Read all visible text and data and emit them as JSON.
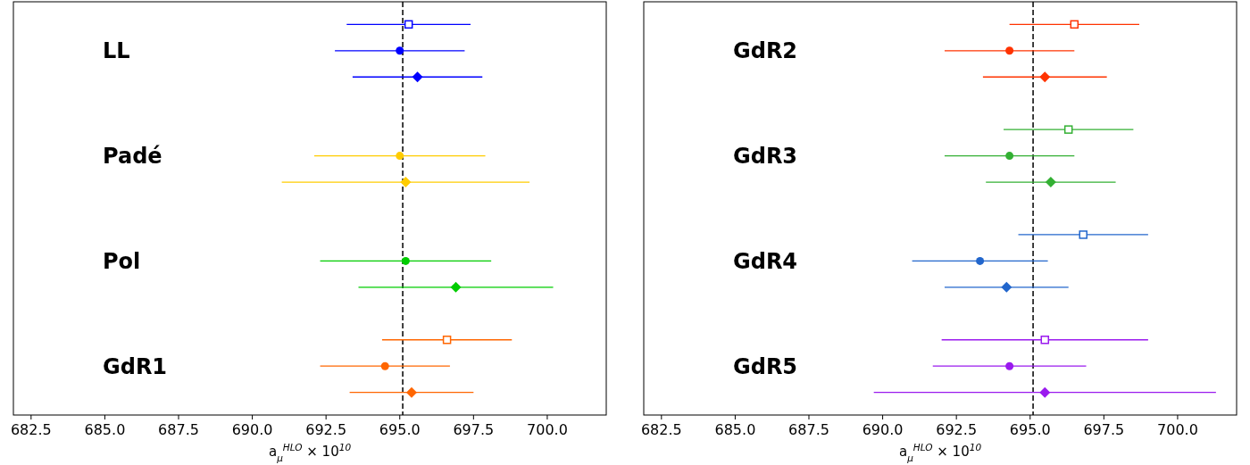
{
  "chart_data": [
    {
      "type": "scatter",
      "orientation": "horizontal",
      "xlabel": "a$_{μ}$$^{HLO}$ × 10$^{10}$",
      "categories": [
        null,
        "LL",
        null,
        null,
        null,
        "Padé",
        null,
        null,
        null,
        "Pol",
        null,
        null,
        null,
        "GdR1",
        null
      ],
      "xlim": [
        681.9,
        702.0
      ],
      "xticks": [
        {
          "value": 682.5,
          "label": "682.5"
        },
        {
          "value": 685,
          "label": "685.0"
        },
        {
          "value": 687.5,
          "label": "687.5"
        },
        {
          "value": 690,
          "label": "690.0"
        },
        {
          "value": 692.5,
          "label": "692.5"
        },
        {
          "value": 695,
          "label": "695.0"
        },
        {
          "value": 697.5,
          "label": "697.5"
        },
        {
          "value": 700,
          "label": "700.0"
        }
      ],
      "ref_lines": [
        {
          "axis": "x",
          "value": 695.1,
          "color": "#000000",
          "line_style": "dashed"
        }
      ],
      "series": [
        {
          "marker": "square",
          "colors": [
            "#0000ff",
            null,
            null,
            null,
            null,
            null,
            null,
            null,
            null,
            null,
            null,
            null,
            "#ff6600",
            null,
            null
          ],
          "values": [
            695.3,
            null,
            null,
            null,
            null,
            null,
            null,
            null,
            null,
            null,
            null,
            null,
            696.6,
            null,
            null
          ],
          "errors": [
            2.1,
            null,
            null,
            null,
            null,
            null,
            null,
            null,
            null,
            null,
            null,
            null,
            2.2,
            null,
            null
          ]
        },
        {
          "marker": "circle",
          "colors": [
            null,
            "#0000ff",
            null,
            null,
            null,
            "#ffcc00",
            null,
            null,
            null,
            "#00cc00",
            null,
            null,
            null,
            "#ff6600",
            null
          ],
          "values": [
            null,
            695.0,
            null,
            null,
            null,
            695.0,
            null,
            null,
            null,
            695.2,
            null,
            null,
            null,
            694.5,
            null
          ],
          "errors": [
            null,
            2.2,
            null,
            null,
            null,
            2.9,
            null,
            null,
            null,
            2.9,
            null,
            null,
            null,
            2.2,
            null
          ]
        },
        {
          "marker": "diamond",
          "colors": [
            null,
            null,
            "#0000ff",
            null,
            null,
            null,
            "#ffcc00",
            null,
            null,
            null,
            "#00cc00",
            null,
            null,
            null,
            "#ff6600"
          ],
          "values": [
            null,
            null,
            695.6,
            null,
            null,
            null,
            695.2,
            null,
            null,
            null,
            696.9,
            null,
            null,
            null,
            695.4
          ],
          "errors": [
            null,
            null,
            2.2,
            null,
            null,
            null,
            4.2,
            null,
            null,
            null,
            3.3,
            null,
            null,
            null,
            2.1
          ]
        }
      ]
    },
    {
      "type": "scatter",
      "orientation": "horizontal",
      "xlabel": "a$_{μ}$$^{HLO}$ × 10$^{10}$",
      "categories": [
        null,
        "GdR2",
        null,
        null,
        null,
        "GdR3",
        null,
        null,
        null,
        "GdR4",
        null,
        null,
        null,
        "GdR5",
        null
      ],
      "xlim": [
        681.9,
        702.0
      ],
      "xticks": [
        {
          "value": 682.5,
          "label": "682.5"
        },
        {
          "value": 685,
          "label": "685.0"
        },
        {
          "value": 687.5,
          "label": "687.5"
        },
        {
          "value": 690,
          "label": "690.0"
        },
        {
          "value": 692.5,
          "label": "692.5"
        },
        {
          "value": 695,
          "label": "695.0"
        },
        {
          "value": 697.5,
          "label": "697.5"
        },
        {
          "value": 700,
          "label": "700.0"
        }
      ],
      "ref_lines": [
        {
          "axis": "x",
          "value": 695.1,
          "color": "#000000",
          "line_style": "dashed"
        }
      ],
      "series": [
        {
          "marker": "square",
          "colors": [
            "#ff3300",
            null,
            null,
            null,
            "#33b033",
            null,
            null,
            null,
            "#2266cc",
            null,
            null,
            null,
            "#9a1aee",
            null,
            null
          ],
          "values": [
            696.5,
            null,
            null,
            null,
            696.3,
            null,
            null,
            null,
            696.8,
            null,
            null,
            null,
            695.5,
            null,
            null
          ],
          "errors": [
            2.2,
            null,
            null,
            null,
            2.2,
            null,
            null,
            null,
            2.2,
            null,
            null,
            null,
            3.5,
            null,
            null
          ]
        },
        {
          "marker": "circle",
          "colors": [
            null,
            "#ff3300",
            null,
            null,
            null,
            "#33b033",
            null,
            null,
            null,
            "#2266cc",
            null,
            null,
            null,
            "#9a1aee",
            null
          ],
          "values": [
            null,
            694.3,
            null,
            null,
            null,
            694.3,
            null,
            null,
            null,
            693.3,
            null,
            null,
            null,
            694.3,
            null
          ],
          "errors": [
            null,
            2.2,
            null,
            null,
            null,
            2.2,
            null,
            null,
            null,
            2.3,
            null,
            null,
            null,
            2.6,
            null
          ]
        },
        {
          "marker": "diamond",
          "colors": [
            null,
            null,
            "#ff3300",
            null,
            null,
            null,
            "#33b033",
            null,
            null,
            null,
            "#2266cc",
            null,
            null,
            null,
            "#9a1aee"
          ],
          "values": [
            null,
            null,
            695.5,
            null,
            null,
            null,
            695.7,
            null,
            null,
            null,
            694.2,
            null,
            null,
            null,
            695.5
          ],
          "errors": [
            null,
            null,
            2.1,
            null,
            null,
            null,
            2.2,
            null,
            null,
            null,
            2.1,
            null,
            null,
            null,
            5.8
          ]
        }
      ]
    }
  ]
}
